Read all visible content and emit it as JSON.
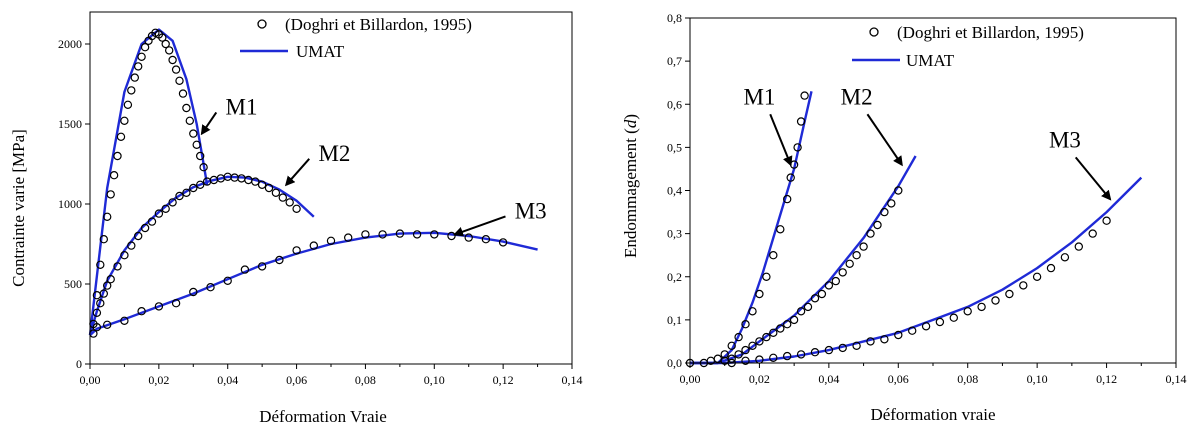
{
  "chart_data": [
    {
      "type": "line",
      "xlabel": "Déformation Vraie",
      "ylabel": "Contrainte varie [MPa]",
      "xlim": [
        0,
        0.14
      ],
      "ylim": [
        0,
        2200
      ],
      "xticks": [
        "0,00",
        "0,02",
        "0,04",
        "0,06",
        "0,08",
        "0,10",
        "0,12",
        "0,14"
      ],
      "yticks": [
        "0",
        "500",
        "1000",
        "1500",
        "2000"
      ],
      "xtick_values": [
        0,
        0.02,
        0.04,
        0.06,
        0.08,
        0.1,
        0.12,
        0.14
      ],
      "ytick_values": [
        0,
        500,
        1000,
        1500,
        2000
      ],
      "legend": {
        "placement": "top-right",
        "entries": [
          "(Doghri et Billardon, 1995)",
          "UMAT"
        ]
      },
      "line_color": "#1f2ad6",
      "series": [
        {
          "name": "M1",
          "x": [
            0,
            0.002,
            0.005,
            0.01,
            0.015,
            0.02,
            0.024,
            0.028,
            0.031,
            0.033,
            0.034
          ],
          "y": [
            180,
            550,
            1100,
            1700,
            2000,
            2090,
            2020,
            1780,
            1500,
            1250,
            1120
          ]
        },
        {
          "name": "M2",
          "x": [
            0,
            0.002,
            0.005,
            0.01,
            0.015,
            0.02,
            0.025,
            0.03,
            0.035,
            0.04,
            0.045,
            0.05,
            0.055,
            0.06,
            0.065
          ],
          "y": [
            180,
            330,
            520,
            710,
            850,
            950,
            1040,
            1105,
            1145,
            1170,
            1165,
            1140,
            1090,
            1020,
            920
          ]
        },
        {
          "name": "M3",
          "x": [
            0,
            0.002,
            0.01,
            0.02,
            0.03,
            0.04,
            0.05,
            0.06,
            0.07,
            0.08,
            0.09,
            0.1,
            0.11,
            0.12,
            0.13
          ],
          "y": [
            180,
            220,
            280,
            360,
            440,
            530,
            620,
            690,
            750,
            790,
            815,
            820,
            800,
            765,
            715
          ]
        }
      ],
      "markers": [
        {
          "name": "M1",
          "x": [
            0.002,
            0.003,
            0.004,
            0.005,
            0.006,
            0.007,
            0.008,
            0.009,
            0.01,
            0.011,
            0.012,
            0.013,
            0.014,
            0.015,
            0.016,
            0.017,
            0.018,
            0.019,
            0.02,
            0.021,
            0.022,
            0.023,
            0.024,
            0.025,
            0.026,
            0.027,
            0.028,
            0.029,
            0.03,
            0.031,
            0.032,
            0.033
          ],
          "y": [
            430,
            620,
            780,
            920,
            1060,
            1180,
            1300,
            1420,
            1520,
            1620,
            1710,
            1790,
            1860,
            1920,
            1980,
            2020,
            2050,
            2070,
            2060,
            2040,
            2000,
            1960,
            1900,
            1840,
            1770,
            1690,
            1600,
            1520,
            1440,
            1370,
            1300,
            1230
          ]
        },
        {
          "name": "M2",
          "x": [
            0.001,
            0.002,
            0.003,
            0.004,
            0.005,
            0.006,
            0.008,
            0.01,
            0.012,
            0.014,
            0.016,
            0.018,
            0.02,
            0.022,
            0.024,
            0.026,
            0.028,
            0.03,
            0.032,
            0.034,
            0.036,
            0.038,
            0.04,
            0.042,
            0.044,
            0.046,
            0.048,
            0.05,
            0.052,
            0.054,
            0.056,
            0.058,
            0.06
          ],
          "y": [
            250,
            320,
            380,
            440,
            490,
            530,
            610,
            680,
            740,
            800,
            850,
            890,
            940,
            970,
            1010,
            1050,
            1070,
            1100,
            1120,
            1140,
            1150,
            1160,
            1170,
            1165,
            1160,
            1150,
            1140,
            1120,
            1100,
            1070,
            1040,
            1010,
            970
          ]
        },
        {
          "name": "M3",
          "x": [
            0.001,
            0.002,
            0.005,
            0.01,
            0.015,
            0.02,
            0.025,
            0.03,
            0.035,
            0.04,
            0.045,
            0.05,
            0.055,
            0.06,
            0.065,
            0.07,
            0.075,
            0.08,
            0.085,
            0.09,
            0.095,
            0.1,
            0.105,
            0.11,
            0.115,
            0.12
          ],
          "y": [
            190,
            230,
            245,
            270,
            330,
            360,
            380,
            450,
            480,
            520,
            590,
            610,
            650,
            710,
            740,
            770,
            790,
            810,
            810,
            815,
            810,
            810,
            800,
            790,
            780,
            760
          ]
        }
      ],
      "annotations": [
        {
          "text": "M1",
          "x": 0.044,
          "y": 1560,
          "arrow_x": 0.0325,
          "arrow_y": 1440
        },
        {
          "text": "M2",
          "x": 0.071,
          "y": 1270,
          "arrow_x": 0.057,
          "arrow_y": 1120
        },
        {
          "text": "M3",
          "x": 0.128,
          "y": 910,
          "arrow_x": 0.106,
          "arrow_y": 810
        }
      ]
    },
    {
      "type": "line",
      "xlabel": "Déformation vraie",
      "ylabel_pre": "Endommagement (",
      "ylabel_var": "d",
      "ylabel_post": ")",
      "xlim": [
        0,
        0.14
      ],
      "ylim": [
        0,
        0.8
      ],
      "xticks": [
        "0,00",
        "0,02",
        "0,04",
        "0,06",
        "0,08",
        "0,10",
        "0,12",
        "0,14"
      ],
      "yticks": [
        "0,0",
        "0,1",
        "0,2",
        "0,3",
        "0,4",
        "0,5",
        "0,6",
        "0,7",
        "0,8"
      ],
      "xtick_values": [
        0,
        0.02,
        0.04,
        0.06,
        0.08,
        0.1,
        0.12,
        0.14
      ],
      "ytick_values": [
        0,
        0.1,
        0.2,
        0.3,
        0.4,
        0.5,
        0.6,
        0.7,
        0.8
      ],
      "legend": {
        "placement": "top-right",
        "entries": [
          "(Doghri et Billardon, 1995)",
          "UMAT"
        ]
      },
      "line_color": "#1f2ad6",
      "series": [
        {
          "name": "M1",
          "x": [
            0,
            0.008,
            0.012,
            0.015,
            0.018,
            0.021,
            0.024,
            0.027,
            0.03,
            0.033,
            0.035
          ],
          "y": [
            0,
            0,
            0.03,
            0.08,
            0.14,
            0.21,
            0.29,
            0.37,
            0.45,
            0.56,
            0.63
          ]
        },
        {
          "name": "M2",
          "x": [
            0,
            0.008,
            0.015,
            0.02,
            0.025,
            0.03,
            0.035,
            0.04,
            0.045,
            0.05,
            0.055,
            0.06,
            0.065
          ],
          "y": [
            0,
            0,
            0.02,
            0.05,
            0.08,
            0.11,
            0.15,
            0.19,
            0.24,
            0.29,
            0.35,
            0.41,
            0.48
          ]
        },
        {
          "name": "M3",
          "x": [
            0,
            0.01,
            0.02,
            0.03,
            0.04,
            0.05,
            0.06,
            0.07,
            0.08,
            0.09,
            0.1,
            0.11,
            0.12,
            0.13
          ],
          "y": [
            0,
            0,
            0.005,
            0.015,
            0.03,
            0.05,
            0.07,
            0.1,
            0.13,
            0.17,
            0.22,
            0.28,
            0.35,
            0.43
          ]
        }
      ],
      "markers": [
        {
          "name": "M1",
          "x": [
            0.0,
            0.004,
            0.006,
            0.008,
            0.01,
            0.012,
            0.014,
            0.016,
            0.018,
            0.02,
            0.022,
            0.024,
            0.026,
            0.028,
            0.029,
            0.03,
            0.031,
            0.032,
            0.033
          ],
          "y": [
            0,
            0,
            0.005,
            0.01,
            0.02,
            0.04,
            0.06,
            0.09,
            0.12,
            0.16,
            0.2,
            0.25,
            0.31,
            0.38,
            0.43,
            0.46,
            0.5,
            0.56,
            0.62
          ]
        },
        {
          "name": "M2",
          "x": [
            0.01,
            0.012,
            0.014,
            0.016,
            0.018,
            0.02,
            0.022,
            0.024,
            0.026,
            0.028,
            0.03,
            0.032,
            0.034,
            0.036,
            0.038,
            0.04,
            0.042,
            0.044,
            0.046,
            0.048,
            0.05,
            0.052,
            0.054,
            0.056,
            0.058,
            0.06
          ],
          "y": [
            0.005,
            0.01,
            0.02,
            0.03,
            0.04,
            0.05,
            0.06,
            0.07,
            0.08,
            0.09,
            0.1,
            0.12,
            0.13,
            0.15,
            0.16,
            0.18,
            0.19,
            0.21,
            0.23,
            0.25,
            0.27,
            0.3,
            0.32,
            0.35,
            0.37,
            0.4
          ]
        },
        {
          "name": "M3",
          "x": [
            0.012,
            0.016,
            0.02,
            0.024,
            0.028,
            0.032,
            0.036,
            0.04,
            0.044,
            0.048,
            0.052,
            0.056,
            0.06,
            0.064,
            0.068,
            0.072,
            0.076,
            0.08,
            0.084,
            0.088,
            0.092,
            0.096,
            0.1,
            0.104,
            0.108,
            0.112,
            0.116,
            0.12
          ],
          "y": [
            0,
            0.005,
            0.008,
            0.012,
            0.016,
            0.02,
            0.025,
            0.03,
            0.035,
            0.04,
            0.05,
            0.055,
            0.065,
            0.075,
            0.085,
            0.095,
            0.105,
            0.12,
            0.13,
            0.145,
            0.16,
            0.18,
            0.2,
            0.22,
            0.245,
            0.27,
            0.3,
            0.33
          ]
        }
      ],
      "annotations": [
        {
          "text": "M1",
          "x": 0.02,
          "y": 0.6,
          "arrow_x": 0.029,
          "arrow_y": 0.46
        },
        {
          "text": "M2",
          "x": 0.048,
          "y": 0.6,
          "arrow_x": 0.061,
          "arrow_y": 0.46
        },
        {
          "text": "M3",
          "x": 0.108,
          "y": 0.5,
          "arrow_x": 0.121,
          "arrow_y": 0.38
        }
      ]
    }
  ]
}
